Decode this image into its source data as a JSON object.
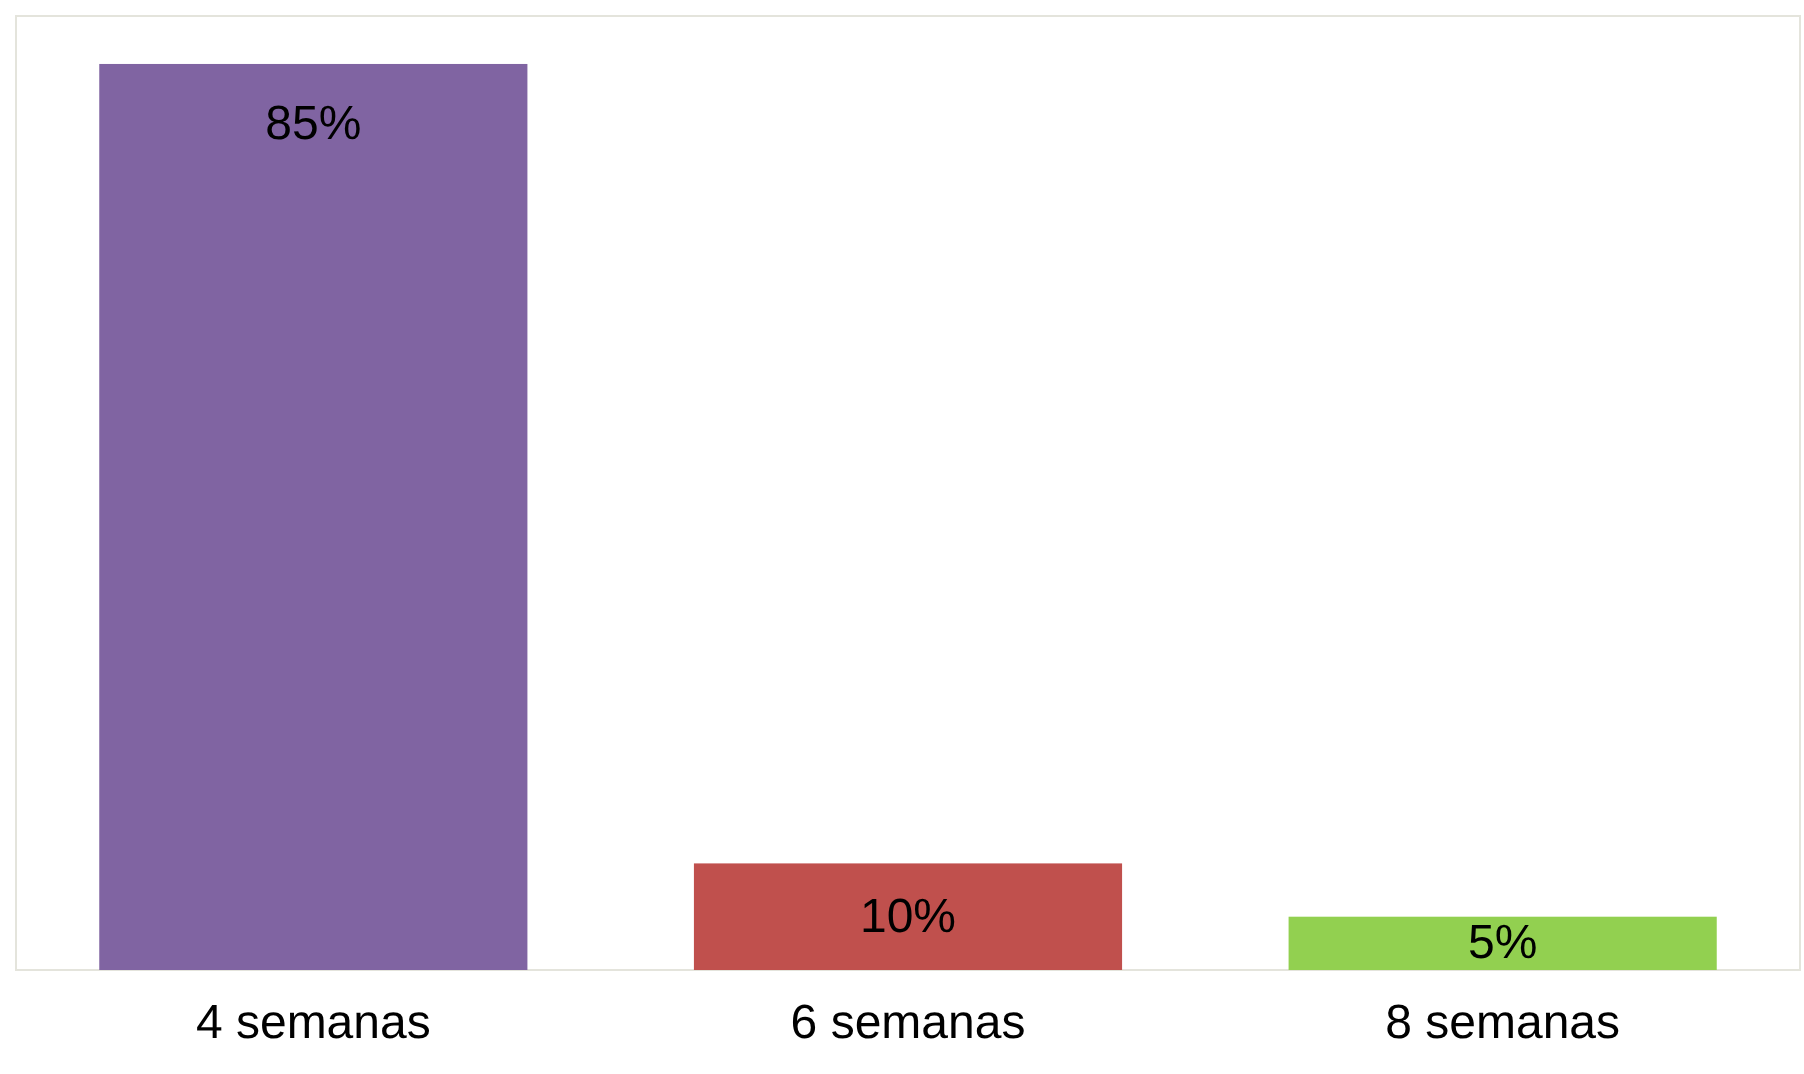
{
  "chart_data": {
    "type": "bar",
    "categories": [
      "4 semanas",
      "6 semanas",
      "8 semanas"
    ],
    "values": [
      85,
      10,
      5
    ],
    "colors": [
      "#8064a2",
      "#c0504d",
      "#92d050"
    ],
    "value_labels": [
      "85%",
      "10%",
      "5%"
    ],
    "ylim": [
      0,
      89.5
    ]
  }
}
